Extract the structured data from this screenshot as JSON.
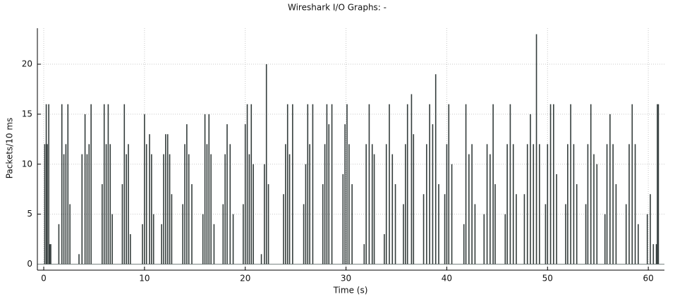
{
  "chart_data": {
    "type": "impulse",
    "title": "Wireshark I/O Graphs: -",
    "x_label": "Time (s)",
    "y_label": "Packets/10 ms",
    "xlim": [
      -0.63,
      61.6
    ],
    "ylim": [
      -0.6,
      23.6
    ],
    "xticks": [
      0,
      10,
      20,
      30,
      40,
      50,
      60
    ],
    "yticks": [
      0,
      5,
      10,
      15,
      20
    ],
    "grid": true,
    "series": [
      {
        "color": "#343d3c",
        "x": [
          0.1,
          0.25,
          0.35,
          0.5,
          0.6,
          0.7,
          1.5,
          1.8,
          2.0,
          2.2,
          2.4,
          2.6,
          3.5,
          3.8,
          4.1,
          4.3,
          4.5,
          4.7,
          5.8,
          6.0,
          6.2,
          6.4,
          6.6,
          6.8,
          7.8,
          8.0,
          8.2,
          8.4,
          8.6,
          9.8,
          10.0,
          10.2,
          10.5,
          10.7,
          10.9,
          11.7,
          11.9,
          12.1,
          12.3,
          12.5,
          12.7,
          13.8,
          14.0,
          14.2,
          14.4,
          14.7,
          15.8,
          16.0,
          16.2,
          16.4,
          16.6,
          16.9,
          17.8,
          18.0,
          18.2,
          18.5,
          18.8,
          19.8,
          20.0,
          20.2,
          20.4,
          20.6,
          20.8,
          21.6,
          21.9,
          22.1,
          22.3,
          23.8,
          24.0,
          24.2,
          24.4,
          24.7,
          25.8,
          26.0,
          26.2,
          26.4,
          26.7,
          27.7,
          27.9,
          28.1,
          28.3,
          28.6,
          29.7,
          29.9,
          30.1,
          30.3,
          30.6,
          31.8,
          32.0,
          32.3,
          32.6,
          32.8,
          33.8,
          34.0,
          34.3,
          34.6,
          34.9,
          35.7,
          35.9,
          36.1,
          36.5,
          36.7,
          37.7,
          38.0,
          38.3,
          38.6,
          38.9,
          39.2,
          39.8,
          40.0,
          40.2,
          40.5,
          41.7,
          41.9,
          42.2,
          42.5,
          42.8,
          43.7,
          44.0,
          44.3,
          44.6,
          44.8,
          45.8,
          46.0,
          46.3,
          46.6,
          46.9,
          47.7,
          48.0,
          48.3,
          48.6,
          48.9,
          49.2,
          49.8,
          50.0,
          50.3,
          50.6,
          50.9,
          51.8,
          52.0,
          52.3,
          52.6,
          52.9,
          53.8,
          54.0,
          54.3,
          54.6,
          54.9,
          55.7,
          55.9,
          56.2,
          56.5,
          56.8,
          57.8,
          58.1,
          58.4,
          58.7,
          59.0,
          59.9,
          60.2,
          60.5,
          60.8,
          60.9,
          61.0
        ],
        "values": [
          12,
          16,
          12,
          16,
          2,
          2,
          4,
          16,
          11,
          12,
          16,
          6,
          1,
          11,
          15,
          11,
          12,
          16,
          8,
          16,
          12,
          16,
          12,
          5,
          8,
          16,
          11,
          12,
          3,
          4,
          15,
          12,
          13,
          11,
          5,
          4,
          11,
          13,
          13,
          11,
          7,
          6,
          12,
          14,
          11,
          8,
          5,
          15,
          12,
          15,
          11,
          4,
          6,
          11,
          14,
          12,
          5,
          6,
          14,
          16,
          11,
          16,
          10,
          1,
          10,
          20,
          8,
          7,
          12,
          16,
          11,
          16,
          6,
          10,
          16,
          12,
          16,
          8,
          12,
          16,
          14,
          16,
          9,
          14,
          16,
          12,
          8,
          2,
          12,
          16,
          12,
          11,
          3,
          12,
          16,
          11,
          8,
          6,
          12,
          16,
          17,
          13,
          7,
          12,
          16,
          14,
          19,
          8,
          7,
          12,
          16,
          10,
          4,
          16,
          11,
          12,
          6,
          5,
          12,
          11,
          16,
          8,
          5,
          12,
          16,
          12,
          7,
          7,
          12,
          15,
          12,
          23,
          12,
          6,
          12,
          16,
          16,
          9,
          6,
          12,
          16,
          12,
          8,
          6,
          12,
          16,
          11,
          10,
          5,
          12,
          15,
          12,
          8,
          6,
          12,
          16,
          12,
          4,
          5,
          7,
          2,
          2,
          16,
          16
        ]
      }
    ]
  }
}
